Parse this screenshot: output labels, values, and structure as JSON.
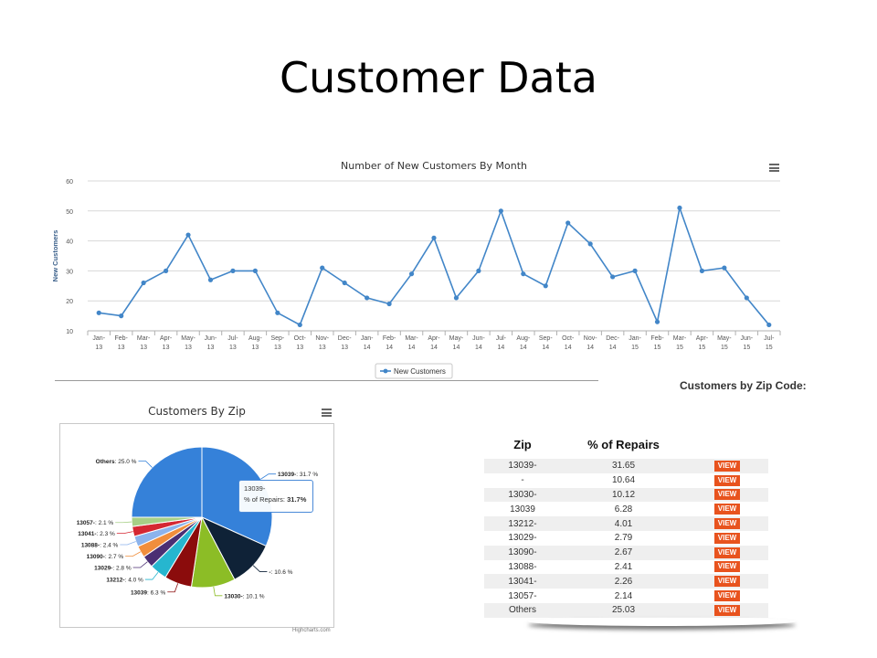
{
  "slide": {
    "title": "Customer Data"
  },
  "line_chart": {
    "menu_icon": "hamburger-menu-icon"
  },
  "pie_chart": {
    "menu_icon": "hamburger-menu-icon",
    "credits": "Highcharts.com",
    "tooltip": {
      "line1": "13039-",
      "line2_label": "% of Repairs: ",
      "line2_value": "31.7%"
    }
  },
  "zip_table": {
    "heading": "Customers by Zip Code:",
    "columns": [
      "Zip",
      "% of Repairs",
      ""
    ],
    "view_label": "VIEW",
    "rows": [
      {
        "zip": "13039-",
        "pct": "31.65"
      },
      {
        "zip": "-",
        "pct": "10.64"
      },
      {
        "zip": "13030-",
        "pct": "10.12"
      },
      {
        "zip": "13039",
        "pct": "6.28"
      },
      {
        "zip": "13212-",
        "pct": "4.01"
      },
      {
        "zip": "13029-",
        "pct": "2.79"
      },
      {
        "zip": "13090-",
        "pct": "2.67"
      },
      {
        "zip": "13088-",
        "pct": "2.41"
      },
      {
        "zip": "13041-",
        "pct": "2.26"
      },
      {
        "zip": "13057-",
        "pct": "2.14"
      },
      {
        "zip": "Others",
        "pct": "25.03"
      }
    ],
    "view_button_color": "#e8531e"
  },
  "chart_data": [
    {
      "type": "line",
      "title": "Number of New Customers By Month",
      "ylabel": "New Customers",
      "xlabel": "",
      "ylim": [
        10,
        60
      ],
      "yticks": [
        10,
        20,
        30,
        40,
        50,
        60
      ],
      "grid": true,
      "legend": "bottom-center",
      "categories": [
        [
          "Jan-",
          "13"
        ],
        [
          "Feb-",
          "13"
        ],
        [
          "Mar-",
          "13"
        ],
        [
          "Apr-",
          "13"
        ],
        [
          "May-",
          "13"
        ],
        [
          "Jun-",
          "13"
        ],
        [
          "Jul-",
          "13"
        ],
        [
          "Aug-",
          "13"
        ],
        [
          "Sep-",
          "13"
        ],
        [
          "Oct-",
          "13"
        ],
        [
          "Nov-",
          "13"
        ],
        [
          "Dec-",
          "13"
        ],
        [
          "Jan-",
          "14"
        ],
        [
          "Feb-",
          "14"
        ],
        [
          "Mar-",
          "14"
        ],
        [
          "Apr-",
          "14"
        ],
        [
          "May-",
          "14"
        ],
        [
          "Jun-",
          "14"
        ],
        [
          "Jul-",
          "14"
        ],
        [
          "Aug-",
          "14"
        ],
        [
          "Sep-",
          "14"
        ],
        [
          "Oct-",
          "14"
        ],
        [
          "Nov-",
          "14"
        ],
        [
          "Dec-",
          "14"
        ],
        [
          "Jan-",
          "15"
        ],
        [
          "Feb-",
          "15"
        ],
        [
          "Mar-",
          "15"
        ],
        [
          "Apr-",
          "15"
        ],
        [
          "May-",
          "15"
        ],
        [
          "Jun-",
          "15"
        ],
        [
          "Jul-",
          "15"
        ]
      ],
      "series": [
        {
          "name": "New Customers",
          "color": "#4286c8",
          "values": [
            16,
            15,
            26,
            30,
            42,
            27,
            30,
            30,
            16,
            12,
            31,
            26,
            21,
            19,
            29,
            41,
            21,
            30,
            50,
            29,
            25,
            46,
            39,
            28,
            30,
            13,
            51,
            30,
            31,
            21,
            12
          ]
        }
      ]
    },
    {
      "type": "pie",
      "title": "Customers By Zip",
      "slices": [
        {
          "label": "13039-",
          "value": 31.7,
          "display": "31.7 %",
          "color": "#3581d9"
        },
        {
          "label": "-",
          "value": 10.6,
          "display": "10.6 %",
          "color": "#0f2237"
        },
        {
          "label": "13030-",
          "value": 10.1,
          "display": "10.1 %",
          "color": "#8cbd26"
        },
        {
          "label": "13039",
          "value": 6.3,
          "display": "6.3 %",
          "color": "#8b0c0c"
        },
        {
          "label": "13212-",
          "value": 4.0,
          "display": "4.0 %",
          "color": "#26b6cf"
        },
        {
          "label": "13029-",
          "value": 2.8,
          "display": "2.8 %",
          "color": "#4b2f73"
        },
        {
          "label": "13090-",
          "value": 2.7,
          "display": "2.7 %",
          "color": "#f18e3c"
        },
        {
          "label": "13088-",
          "value": 2.4,
          "display": "2.4 %",
          "color": "#8cb3ec"
        },
        {
          "label": "13041-",
          "value": 2.3,
          "display": "2.3 %",
          "color": "#d52732"
        },
        {
          "label": "13057-",
          "value": 2.1,
          "display": "2.1 %",
          "color": "#a7cf86"
        },
        {
          "label": "Others",
          "value": 25.0,
          "display": "25.0 %",
          "color": "#3581d9"
        }
      ]
    }
  ]
}
